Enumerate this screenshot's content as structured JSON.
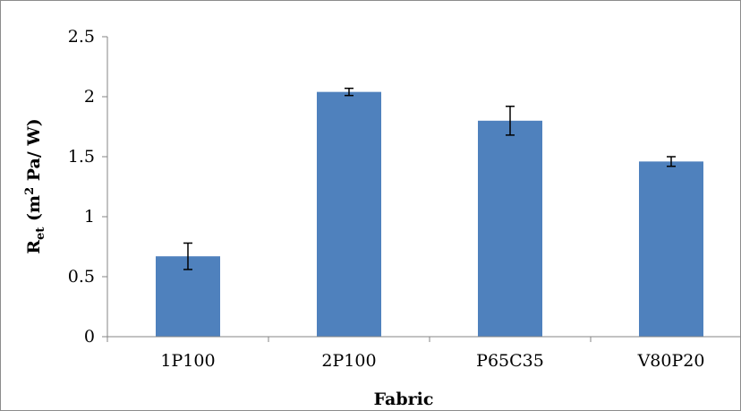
{
  "chart_data": {
    "type": "bar",
    "title": "",
    "xlabel": "Fabric",
    "ylabel": {
      "main": "R",
      "sub": "et",
      "unit_open": " (m",
      "unit_sup": "2",
      "unit_rest": " Pa/ W)"
    },
    "categories": [
      "1P100",
      "2P100",
      "P65C35",
      "V80P20"
    ],
    "values": [
      0.67,
      2.04,
      1.8,
      1.46
    ],
    "error": [
      0.11,
      0.03,
      0.12,
      0.04
    ],
    "ylim": [
      0,
      2.5
    ],
    "yticks": [
      "0",
      "0.5",
      "1",
      "1.5",
      "2",
      "2.5"
    ],
    "ytick_values": [
      0,
      0.5,
      1,
      1.5,
      2,
      2.5
    ],
    "grid": false,
    "legend": "none",
    "colors": {
      "bar": "#4f81bd",
      "axis": "#868686",
      "error": "#000000"
    }
  }
}
